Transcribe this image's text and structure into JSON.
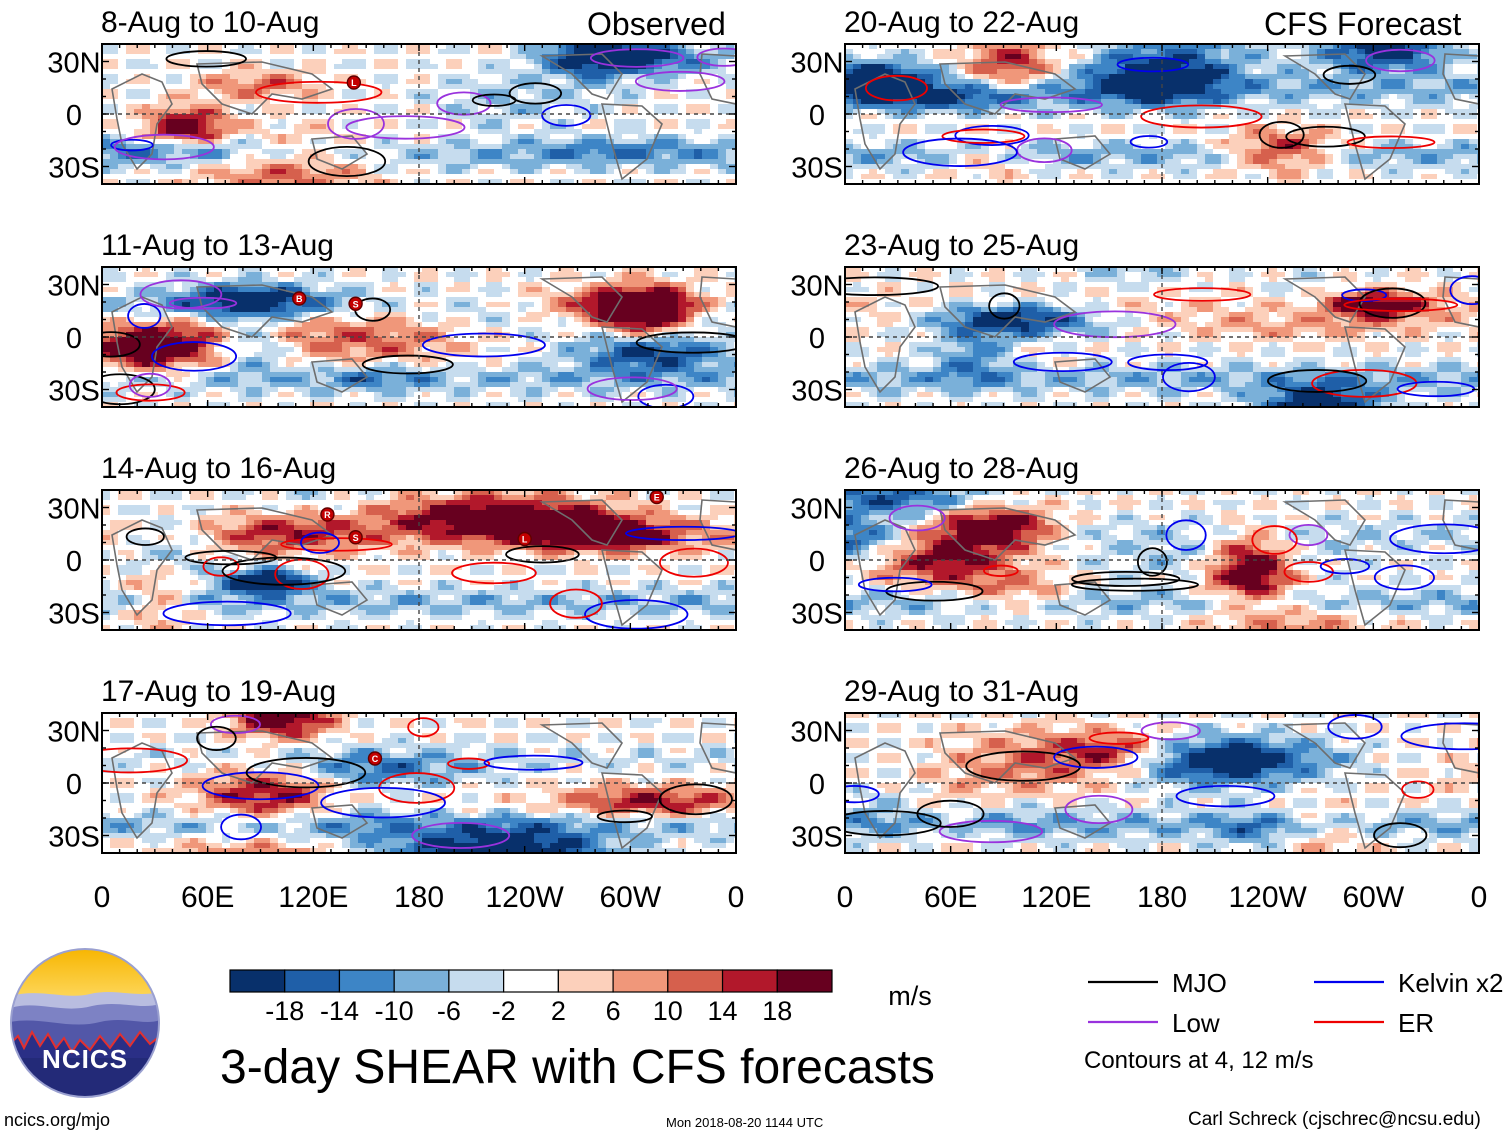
{
  "page": {
    "headers": {
      "observed": "Observed",
      "forecast": "CFS Forecast"
    },
    "title": "3-day SHEAR with CFS forecasts",
    "url": "ncics.org/mjo",
    "timestamp": "Mon 2018-08-20 1144 UTC",
    "credit": "Carl Schreck (cjschrec@ncsu.edu)",
    "logo_text": "NCICS"
  },
  "chart_data": {
    "type": "heatmap",
    "variable": "3-day vertical wind shear anomaly",
    "units": "m/s",
    "lat_ticks": [
      "30N",
      "0",
      "30S"
    ],
    "lon_ticks": [
      "0",
      "60E",
      "120E",
      "180",
      "120W",
      "60W",
      "0"
    ],
    "lat_range": [
      -40,
      40
    ],
    "lon_range": [
      0,
      360
    ],
    "panels": [
      {
        "label": "8-Aug to 10-Aug",
        "column": "observed",
        "seed": 11,
        "storms": [
          {
            "letter": "L",
            "lon": 143,
            "lat": 18
          }
        ]
      },
      {
        "label": "11-Aug to 13-Aug",
        "column": "observed",
        "seed": 23,
        "storms": [
          {
            "letter": "B",
            "lon": 112,
            "lat": 22
          },
          {
            "letter": "S",
            "lon": 144,
            "lat": 19
          }
        ]
      },
      {
        "label": "14-Aug to 16-Aug",
        "column": "observed",
        "seed": 37,
        "storms": [
          {
            "letter": "E",
            "lon": 315,
            "lat": 36
          },
          {
            "letter": "R",
            "lon": 128,
            "lat": 26
          },
          {
            "letter": "S",
            "lon": 144,
            "lat": 13
          },
          {
            "letter": "L",
            "lon": 240,
            "lat": 12
          }
        ]
      },
      {
        "label": "17-Aug to 19-Aug",
        "column": "observed",
        "seed": 41,
        "storms": [
          {
            "letter": "C",
            "lon": 155,
            "lat": 14
          }
        ]
      },
      {
        "label": "20-Aug to 22-Aug",
        "column": "forecast",
        "seed": 53,
        "storms": []
      },
      {
        "label": "23-Aug to 25-Aug",
        "column": "forecast",
        "seed": 67,
        "storms": []
      },
      {
        "label": "26-Aug to 28-Aug",
        "column": "forecast",
        "seed": 71,
        "storms": []
      },
      {
        "label": "29-Aug to 31-Aug",
        "column": "forecast",
        "seed": 89,
        "storms": []
      }
    ],
    "colorbar": {
      "ticks": [
        "-18",
        "-14",
        "-10",
        "-6",
        "-2",
        "2",
        "6",
        "10",
        "14",
        "18"
      ],
      "colors": [
        "#08306b",
        "#1f5fa8",
        "#3d85c6",
        "#7ab0d9",
        "#c6dcee",
        "#ffffff",
        "#fcd0bb",
        "#f0977a",
        "#d6604d",
        "#b2182b",
        "#67001f"
      ],
      "units": "m/s"
    },
    "legend": {
      "items": [
        {
          "label": "MJO",
          "color": "#000000"
        },
        {
          "label": "Kelvin x2",
          "color": "#0000ee"
        },
        {
          "label": "Low",
          "color": "#9932dd"
        },
        {
          "label": "ER",
          "color": "#ee0000"
        }
      ],
      "note": "Contours at 4, 12 m/s"
    }
  }
}
